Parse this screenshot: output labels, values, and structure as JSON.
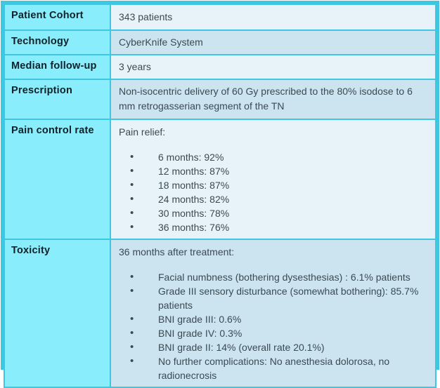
{
  "colors": {
    "border": "#3ec7e0",
    "label_background": "#8aedfb",
    "row_light": "#e7f2f9",
    "row_dark": "#cbe4ef",
    "label_text": "#0e2129",
    "body_text": "#3b4a52"
  },
  "table": {
    "rows": [
      {
        "label": "Patient Cohort",
        "value": "343 patients"
      },
      {
        "label": "Technology",
        "value": "CyberKnife System"
      },
      {
        "label": "Median follow-up",
        "value": "3 years"
      },
      {
        "label": "Prescription",
        "value": "Non-isocentric delivery of 60 Gy prescribed to the 80% isodose to 6 mm retrogasserian segment of the TN"
      },
      {
        "label": "Pain control rate",
        "intro": "Pain relief:",
        "bullets": [
          "6 months: 92%",
          "12 months: 87%",
          "18 months: 87%",
          "24 months: 82%",
          "30 months: 78%",
          "36 months: 76%"
        ]
      },
      {
        "label": "Toxicity",
        "intro": "36 months after treatment:",
        "bullets": [
          "Facial numbness (bothering dysesthesias) : 6.1% patients",
          "Grade III sensory disturbance (somewhat bothering): 85.7% patients",
          "BNI grade III: 0.6%",
          "BNI grade IV: 0.3%",
          "BNI grade II: 14% (overall rate 20.1%)",
          "No further complications: No anesthesia dolorosa, no radionecrosis"
        ]
      }
    ]
  }
}
